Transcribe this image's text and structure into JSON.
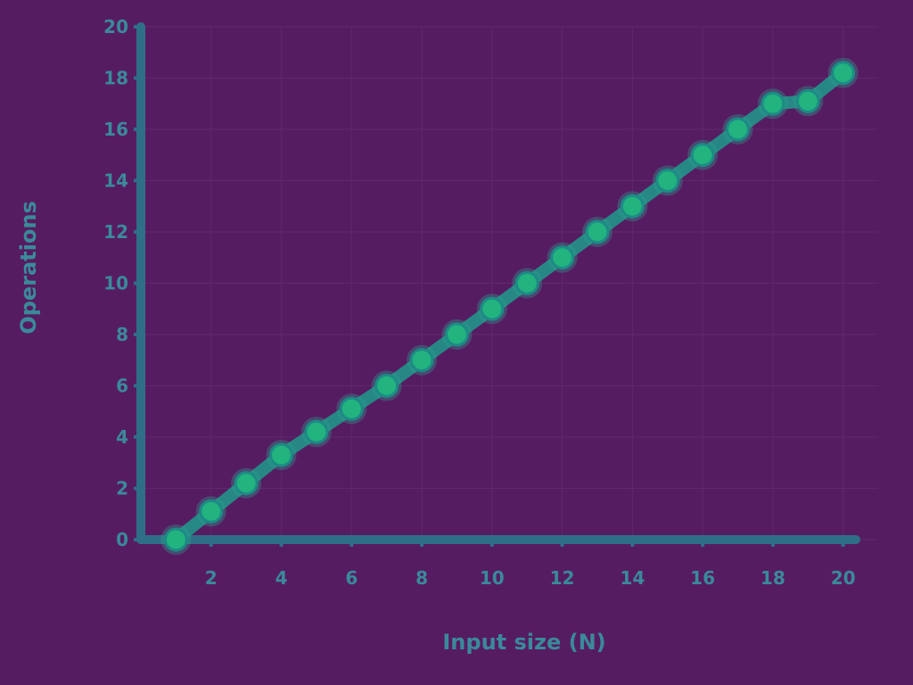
{
  "chart_data": {
    "type": "line",
    "title": "",
    "xlabel": "Input size (N)",
    "ylabel": "Operations",
    "x_ticks": [
      2,
      4,
      6,
      8,
      10,
      12,
      14,
      16,
      18,
      20
    ],
    "y_ticks": [
      0,
      2,
      4,
      6,
      8,
      10,
      12,
      14,
      16,
      18,
      20
    ],
    "xlim": [
      0,
      21
    ],
    "ylim": [
      0,
      20
    ],
    "series": [
      {
        "name": "Operations",
        "color": "#22b37f",
        "x": [
          1,
          2,
          3,
          4,
          5,
          6,
          7,
          8,
          9,
          10,
          11,
          12,
          13,
          14,
          15,
          16,
          17,
          18,
          19,
          20
        ],
        "y": [
          0.0,
          1.1,
          2.2,
          3.3,
          4.2,
          5.1,
          6.0,
          7.0,
          8.0,
          9.0,
          10.0,
          11.0,
          12.0,
          13.0,
          14.0,
          15.0,
          16.0,
          17.0,
          17.1,
          18.2
        ]
      }
    ],
    "grid": true
  }
}
